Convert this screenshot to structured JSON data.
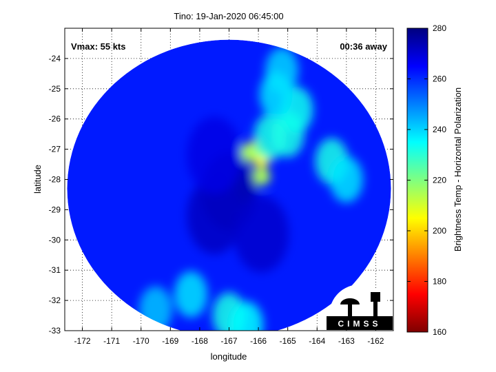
{
  "chart_data": {
    "type": "heatmap",
    "title": "Tino: 19-Jan-2020 06:45:00",
    "xlabel": "longitude",
    "ylabel": "latitude",
    "xlim": [
      -172.6,
      -161.4
    ],
    "ylim": [
      -33,
      -23
    ],
    "x_ticks": [
      -172,
      -171,
      -170,
      -169,
      -168,
      -167,
      -166,
      -165,
      -164,
      -163,
      -162
    ],
    "y_ticks": [
      -24,
      -25,
      -26,
      -27,
      -28,
      -29,
      -30,
      -31,
      -32,
      -33
    ],
    "grid": true,
    "annotations": {
      "vmax": "Vmax: 55 kts",
      "time_away": "00:36 away"
    },
    "colorbar": {
      "label": "Brightness Temp - Horizontal Polarization",
      "min": 160,
      "max": 280,
      "ticks": [
        160,
        180,
        200,
        220,
        240,
        260,
        280
      ],
      "colormap": "jet"
    },
    "swath": {
      "center": [
        -167,
        -28.3
      ],
      "background_value": 262
    },
    "features": [
      {
        "lon": -166.1,
        "lat": -27.0,
        "value": 190
      },
      {
        "lon": -165.9,
        "lat": -27.3,
        "value": 205
      },
      {
        "lon": -166.3,
        "lat": -27.1,
        "value": 215
      },
      {
        "lon": -165.9,
        "lat": -27.9,
        "value": 215
      },
      {
        "lon": -165.6,
        "lat": -26.6,
        "value": 232
      },
      {
        "lon": -165.0,
        "lat": -26.5,
        "value": 232
      },
      {
        "lon": -164.7,
        "lat": -25.7,
        "value": 233
      },
      {
        "lon": -165.2,
        "lat": -24.4,
        "value": 240
      },
      {
        "lon": -165.4,
        "lat": -25.2,
        "value": 238
      },
      {
        "lon": -163.5,
        "lat": -27.4,
        "value": 232
      },
      {
        "lon": -163.0,
        "lat": -28.0,
        "value": 238
      },
      {
        "lon": -168.3,
        "lat": -31.8,
        "value": 238
      },
      {
        "lon": -167.0,
        "lat": -32.5,
        "value": 232
      },
      {
        "lon": -166.4,
        "lat": -32.8,
        "value": 235
      },
      {
        "lon": -169.5,
        "lat": -32.3,
        "value": 242
      },
      {
        "lon": -167.0,
        "lat": -28.4,
        "value": 275
      },
      {
        "lon": -167.5,
        "lat": -29.2,
        "value": 272
      },
      {
        "lon": -165.9,
        "lat": -29.8,
        "value": 271
      },
      {
        "lon": -167.5,
        "lat": -27.2,
        "value": 268
      }
    ]
  },
  "logo": {
    "text": "CIMSS"
  }
}
